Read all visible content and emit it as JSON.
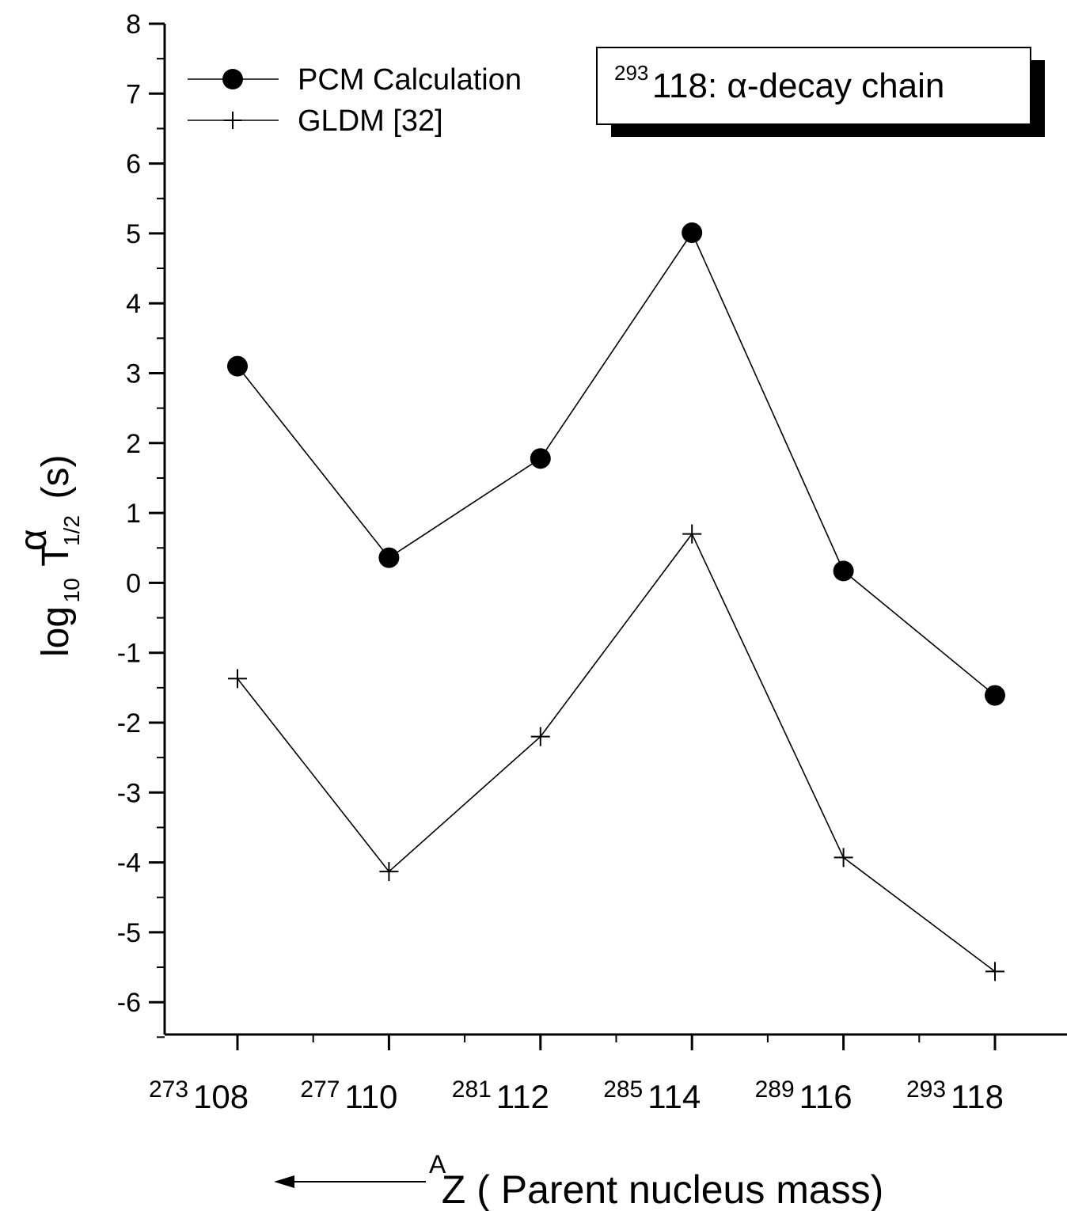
{
  "chart_data": {
    "type": "line",
    "title": {
      "superscript": "293",
      "text": "118: α-decay chain"
    },
    "ylabel": {
      "prefix": "log",
      "prefix_sub": "10",
      "symbol": "T",
      "symbol_sup": "α",
      "symbol_sub": "1/2",
      "unit": "(s)"
    },
    "xlabel": {
      "superscript": "A",
      "text": "Z ( Parent  nucleus mass)",
      "direction": "arrow pointing left"
    },
    "ylim": [
      -6.5,
      8
    ],
    "yticks": [
      8,
      7,
      6,
      5,
      4,
      3,
      2,
      1,
      0,
      -1,
      -2,
      -3,
      -4,
      -5,
      -6
    ],
    "categories": [
      {
        "mass": "273",
        "z": "108"
      },
      {
        "mass": "277",
        "z": "110"
      },
      {
        "mass": "281",
        "z": "112"
      },
      {
        "mass": "285",
        "z": "114"
      },
      {
        "mass": "289",
        "z": "116"
      },
      {
        "mass": "293",
        "z": "118"
      }
    ],
    "series": [
      {
        "name": "PCM Calculation",
        "marker": "filled-circle",
        "values": [
          3.1,
          0.36,
          1.78,
          5.01,
          0.17,
          -1.61
        ]
      },
      {
        "name": "GLDM [32]",
        "marker": "plus",
        "values": [
          -1.37,
          -4.13,
          -2.2,
          0.7,
          -3.93,
          -5.56
        ]
      }
    ],
    "legend": {
      "position": "top-left"
    },
    "grid": false,
    "colors": {
      "line": "#000000",
      "background": "#ffffff"
    }
  }
}
